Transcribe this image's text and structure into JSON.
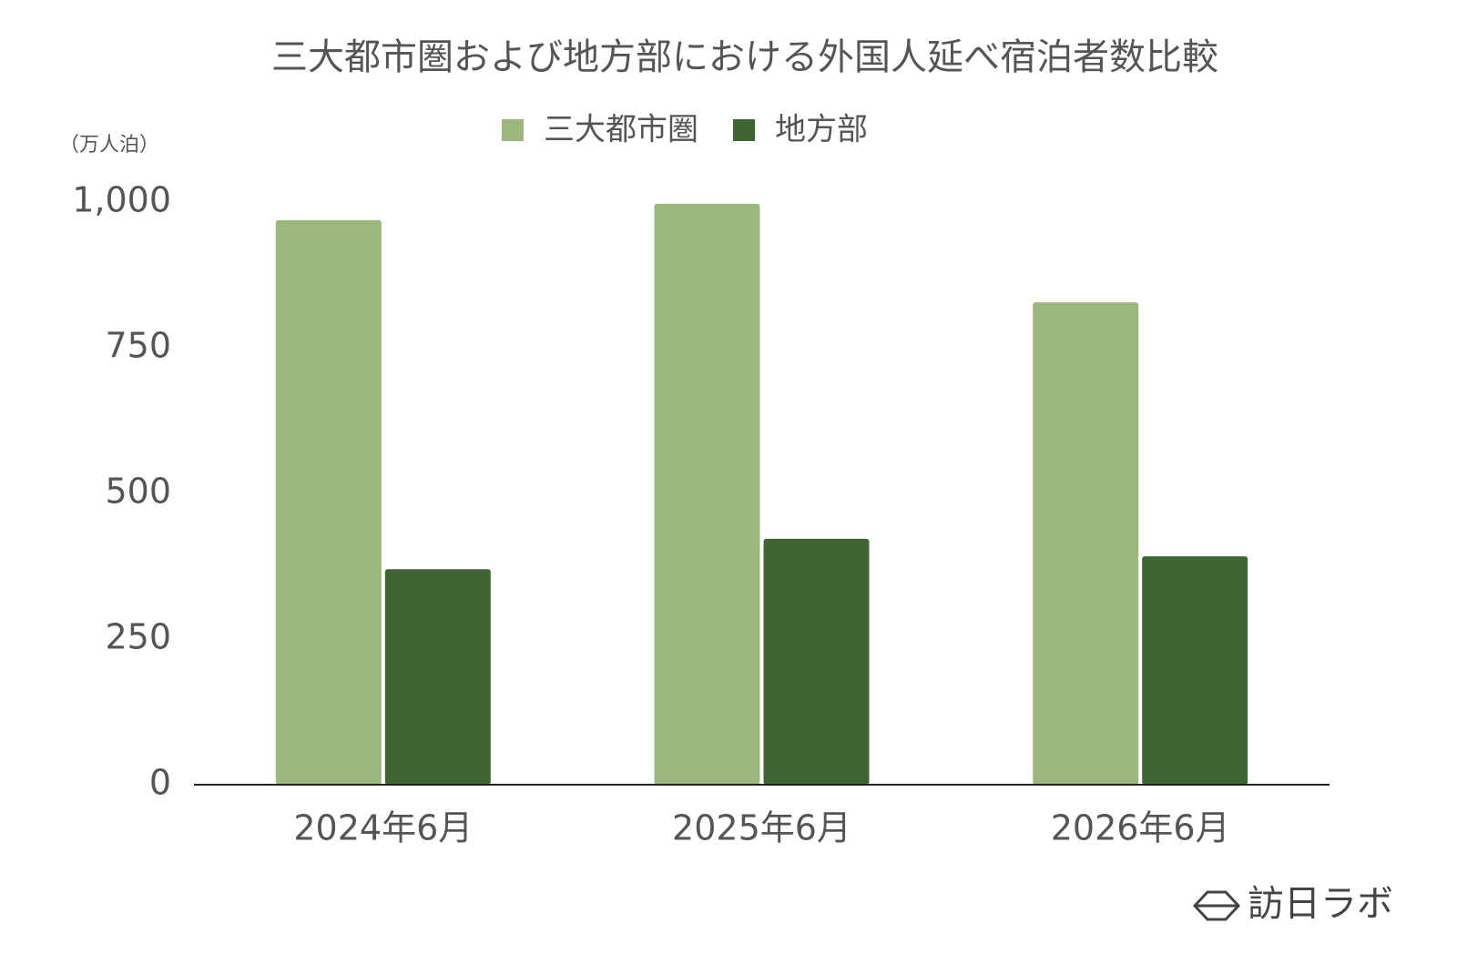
{
  "chart_data": {
    "type": "bar",
    "title": "三大都市圏および地方部における外国人延べ宿泊者数比較",
    "y_axis_label": "（万人泊）",
    "categories": [
      "2024年6月",
      "2025年6月",
      "2026年6月"
    ],
    "series": [
      {
        "name": "三大都市圏",
        "color": "#9bb77e",
        "values": [
          969,
          997,
          828
        ]
      },
      {
        "name": "地方部",
        "color": "#3e6533",
        "values": [
          370,
          422,
          392
        ]
      }
    ],
    "ylim": [
      0,
      1000
    ],
    "yticks": [
      0,
      250,
      500,
      750,
      {
        "value": 1000,
        "label": "1,000"
      }
    ],
    "legend": "top",
    "source": "訪日ラボ"
  }
}
